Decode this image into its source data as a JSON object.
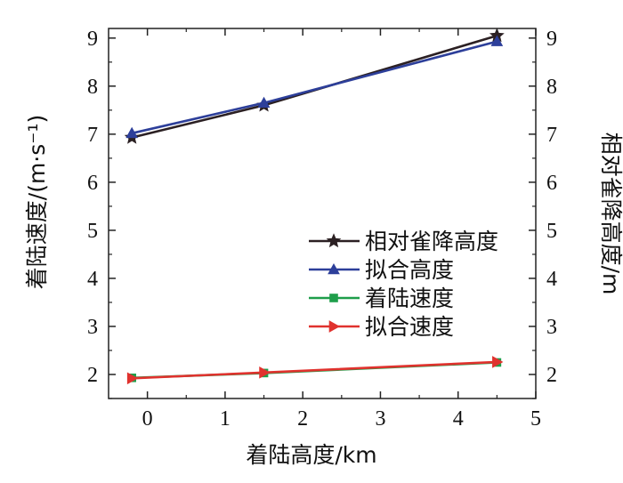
{
  "chart_data": {
    "type": "line",
    "xlabel": "着陆高度/km",
    "ylabel_left": "着陆速度/(m·s⁻¹)",
    "ylabel_right": "相对雀降高度/m",
    "xlim": [
      -0.5,
      5
    ],
    "ylim": [
      1.5,
      9.2
    ],
    "xticks": [
      "0",
      "1",
      "2",
      "3",
      "4",
      "5"
    ],
    "yticks": [
      "2",
      "3",
      "4",
      "5",
      "6",
      "7",
      "8",
      "9"
    ],
    "legend_position": "center-right",
    "grid": false,
    "series": [
      {
        "name": "相对雀降高度",
        "color": "#2b2023",
        "marker": "star",
        "x": [
          -0.2,
          1.5,
          4.5
        ],
        "y": [
          6.93,
          7.6,
          9.05
        ]
      },
      {
        "name": "拟合高度",
        "color": "#2d3f9a",
        "marker": "triangle-up",
        "x": [
          -0.2,
          1.5,
          4.5
        ],
        "y": [
          7.02,
          7.65,
          8.93
        ]
      },
      {
        "name": "着陆速度",
        "color": "#1e9e4a",
        "marker": "square",
        "x": [
          -0.2,
          1.5,
          4.5
        ],
        "y": [
          1.93,
          2.03,
          2.25
        ]
      },
      {
        "name": "拟合速度",
        "color": "#e0322e",
        "marker": "triangle-right",
        "x": [
          -0.2,
          1.5,
          4.5
        ],
        "y": [
          1.92,
          2.04,
          2.26
        ]
      }
    ]
  }
}
